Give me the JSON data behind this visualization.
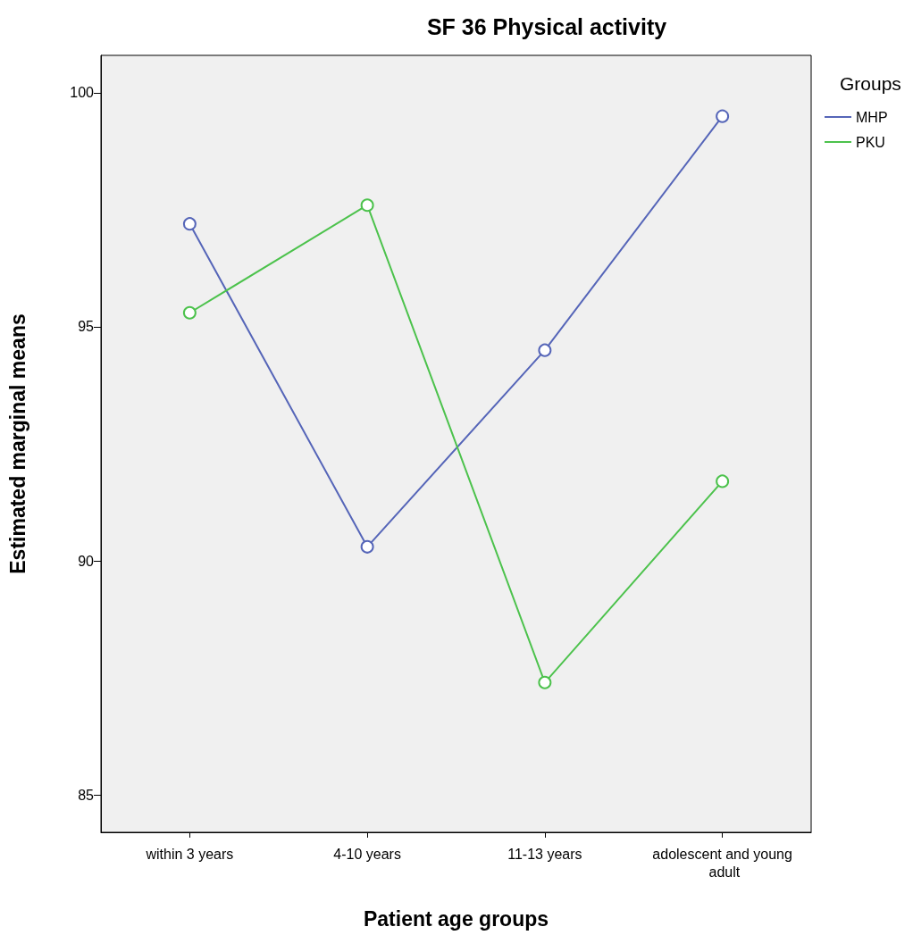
{
  "chart_data": {
    "type": "line",
    "title": "SF 36 Physical activity",
    "xlabel": "Patient age groups",
    "ylabel": "Estimated marginal means",
    "legend_title": "Groups",
    "categories": [
      "within 3 years",
      "4-10 years",
      "11-13 years",
      "adolescent and young adult"
    ],
    "series": [
      {
        "name": "MHP",
        "color": "#5565b8",
        "values": [
          97.2,
          90.3,
          94.5,
          99.5
        ]
      },
      {
        "name": "PKU",
        "color": "#4cc24c",
        "values": [
          95.3,
          97.6,
          87.4,
          91.7
        ]
      }
    ],
    "ylim": [
      84.2,
      100.8
    ],
    "yticks": [
      85,
      90,
      95,
      100
    ],
    "grid": false,
    "legend": "top right",
    "marker": "circle",
    "line_style": "solid"
  }
}
